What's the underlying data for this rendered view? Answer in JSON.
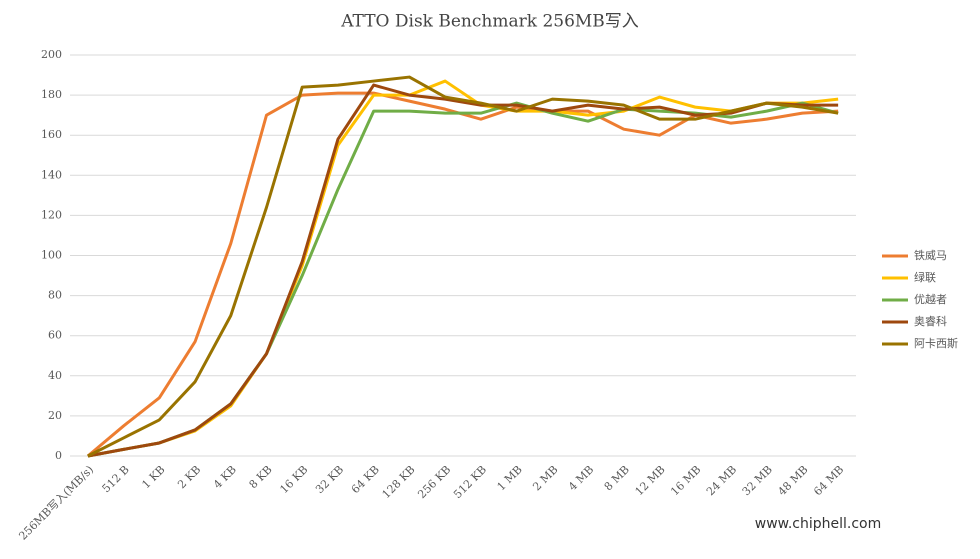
{
  "chart_data": {
    "type": "line",
    "title": "ATTO Disk Benchmark 256MB写入",
    "categories": [
      "256MB写入(MB/s)",
      "512 B",
      "1 KB",
      "2 KB",
      "4 KB",
      "8 KB",
      "16 KB",
      "32 KB",
      "64 KB",
      "128 KB",
      "256 KB",
      "512 KB",
      "1 MB",
      "2 MB",
      "4 MB",
      "8 MB",
      "12 MB",
      "16 MB",
      "24 MB",
      "32 MB",
      "48 MB",
      "64 MB"
    ],
    "series": [
      {
        "name": "铁威马",
        "color": "#ed7d31",
        "values": [
          0,
          15,
          29,
          57,
          106,
          170,
          180,
          181,
          181,
          177,
          173,
          168,
          174,
          172,
          172,
          163,
          160,
          170,
          166,
          168,
          171,
          172
        ]
      },
      {
        "name": "绿联",
        "color": "#ffc000",
        "values": [
          0,
          3.3,
          6.5,
          12.5,
          25,
          51,
          95,
          155,
          180,
          180,
          187,
          175,
          172,
          172,
          170,
          172,
          179,
          174,
          172,
          176,
          176,
          178
        ]
      },
      {
        "name": "优越者",
        "color": "#70ad47",
        "values": [
          0,
          3.3,
          6.5,
          13,
          26,
          51,
          90,
          133,
          172,
          172,
          171,
          171,
          176,
          171,
          167,
          173,
          172,
          171,
          169,
          172,
          176,
          171
        ]
      },
      {
        "name": "奥睿科",
        "color": "#9e480e",
        "values": [
          0,
          3.3,
          6.5,
          13,
          26,
          51,
          97,
          158,
          185,
          180,
          178,
          175,
          175,
          172,
          175,
          173,
          174,
          170,
          171,
          176,
          175,
          175
        ]
      },
      {
        "name": "阿卡西斯",
        "color": "#997300",
        "values": [
          0,
          9,
          18,
          37,
          70,
          124,
          184,
          185,
          187,
          189,
          179,
          176,
          172,
          178,
          177,
          175,
          168,
          168,
          172,
          176,
          174,
          171
        ]
      }
    ],
    "ylim": [
      0,
      200
    ],
    "yticks": [
      0,
      20,
      40,
      60,
      80,
      100,
      120,
      140,
      160,
      180,
      200
    ],
    "grid": true,
    "legend": "right",
    "watermark": "www.chiphell.com"
  }
}
